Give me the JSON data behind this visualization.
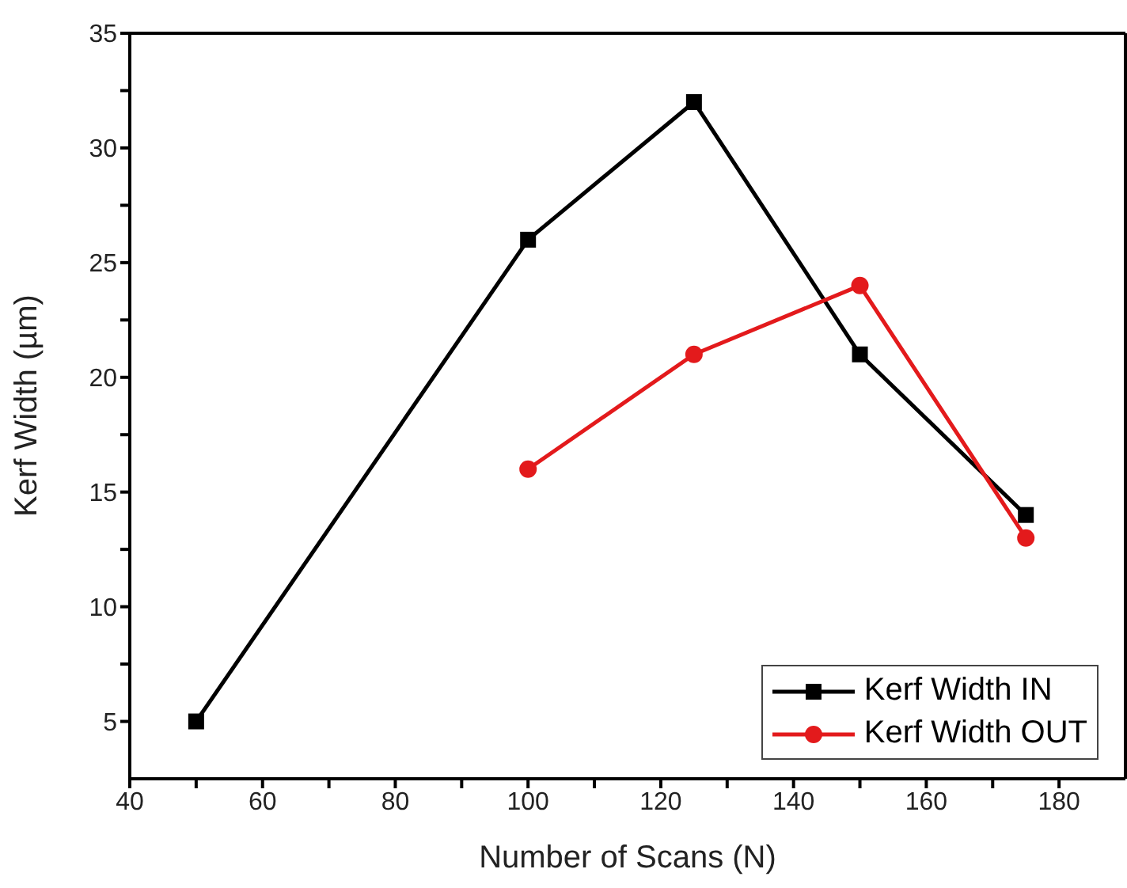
{
  "chart_data": {
    "type": "line",
    "xlabel": "Number of Scans (N)",
    "ylabel": "Kerf Width (µm)",
    "xlim": [
      40,
      190
    ],
    "xticks": [
      40,
      {
        "value": 50,
        "label": null
      },
      60,
      {
        "value": 70,
        "label": null
      },
      80,
      {
        "value": 90,
        "label": null
      },
      100,
      {
        "value": 110,
        "label": null
      },
      120,
      {
        "value": 130,
        "label": null
      },
      140,
      {
        "value": 150,
        "label": null
      },
      160,
      {
        "value": 170,
        "label": null
      },
      180
    ],
    "ylim": [
      2.5,
      35
    ],
    "yticks": [
      5,
      {
        "value": 7.5,
        "label": null
      },
      10,
      {
        "value": 12.5,
        "label": null
      },
      15,
      {
        "value": 17.5,
        "label": null
      },
      20,
      {
        "value": 22.5,
        "label": null
      },
      25,
      {
        "value": 27.5,
        "label": null
      },
      30,
      {
        "value": 32.5,
        "label": null
      },
      35
    ],
    "grid": false,
    "legend": "bottom right",
    "line_style": "solid",
    "series": [
      {
        "name": "Kerf Width IN",
        "color": "#000000",
        "marker": "square",
        "x": [
          50,
          100,
          125,
          150,
          175
        ],
        "values": [
          5,
          26,
          32,
          21,
          14
        ]
      },
      {
        "name": "Kerf Width OUT",
        "color": "#e31a1c",
        "marker": "circle",
        "x": [
          100,
          125,
          150,
          175
        ],
        "values": [
          16,
          21,
          24,
          13
        ]
      }
    ]
  }
}
